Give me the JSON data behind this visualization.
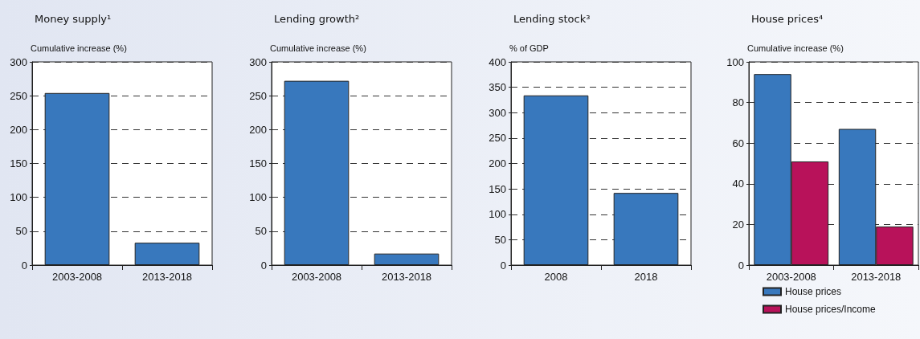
{
  "chart_data": [
    {
      "type": "bar",
      "title": "Money supply¹",
      "ylabel": "Cumulative increase (%)",
      "categories": [
        "2003-2008",
        "2013-2018"
      ],
      "series": [
        {
          "color": "#3878bd",
          "values": [
            254,
            33
          ]
        }
      ],
      "ylim": [
        0,
        300
      ],
      "yticks": [
        0,
        50,
        100,
        150,
        200,
        250,
        300
      ],
      "grid": "y"
    },
    {
      "type": "bar",
      "title": "Lending growth²",
      "ylabel": "Cumulative increase (%)",
      "categories": [
        "2003-2008",
        "2013-2018"
      ],
      "series": [
        {
          "color": "#3878bd",
          "values": [
            272,
            17
          ]
        }
      ],
      "ylim": [
        0,
        300
      ],
      "yticks": [
        0,
        50,
        100,
        150,
        200,
        250,
        300
      ],
      "grid": "y"
    },
    {
      "type": "bar",
      "title": "Lending stock³",
      "ylabel": "% of GDP",
      "categories": [
        "2008",
        "2018"
      ],
      "series": [
        {
          "color": "#3878bd",
          "values": [
            334,
            142
          ]
        }
      ],
      "ylim": [
        0,
        400
      ],
      "yticks": [
        0,
        50,
        100,
        150,
        200,
        250,
        300,
        350,
        400
      ],
      "grid": "y"
    },
    {
      "type": "bar",
      "title": "House prices⁴",
      "ylabel": "Cumulative increase (%)",
      "categories": [
        "2003-2008",
        "2013-2018"
      ],
      "series": [
        {
          "name": "House prices",
          "color": "#3878bd",
          "values": [
            94,
            67
          ]
        },
        {
          "name": "House prices/Income",
          "color": "#b8125a",
          "values": [
            51,
            19
          ]
        }
      ],
      "ylim": [
        0,
        100
      ],
      "yticks": [
        0,
        20,
        40,
        60,
        80,
        100
      ],
      "grid": "y",
      "legend": "bottom"
    }
  ]
}
